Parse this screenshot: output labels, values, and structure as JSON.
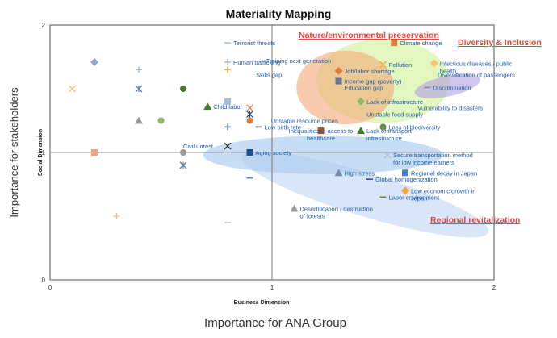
{
  "chart_data": {
    "type": "scatter",
    "title": "Materiality Mapping",
    "xlabel": "Importance for ANA Group",
    "ylabel": "Importance for stakeholders",
    "x_axis_inner_label": "Business Dimension",
    "y_axis_inner_label": "Social Dimension",
    "xlim": [
      0,
      2
    ],
    "ylim": [
      0,
      2
    ],
    "x_ticks": [
      "0",
      "1",
      "2"
    ],
    "y_ticks": [
      "0",
      "1",
      "2"
    ],
    "midlines": {
      "x": 1,
      "y": 1
    },
    "grid": false,
    "regions": [
      {
        "name": "Nature/environmental preservation",
        "color": "#e8473a",
        "cx": 1.5,
        "cy": 1.56,
        "rx": 0.3,
        "ry": 0.33,
        "fill": "#c8f08a",
        "opacity": 0.55,
        "rotate": 0
      },
      {
        "name": "",
        "color": "#f4a878",
        "cx": 1.33,
        "cy": 1.51,
        "rx": 0.22,
        "ry": 0.29,
        "fill": "#f4a878",
        "opacity": 0.6,
        "rotate": 0
      },
      {
        "name": "Diversity & Inclusion",
        "color": "#e8473a",
        "cx": 1.79,
        "cy": 1.52,
        "rx": 0.15,
        "ry": 0.08,
        "fill": "#b7a6e2",
        "opacity": 0.65,
        "rotate": -12
      },
      {
        "name": "Regional revitalization",
        "color": "#e8473a",
        "cx": 1.42,
        "cy": 0.67,
        "rx": 0.58,
        "ry": 0.17,
        "fill": "#aac8ee",
        "opacity": 0.45,
        "rotate": 17
      },
      {
        "name": "",
        "color": "",
        "cx": 1.23,
        "cy": 0.98,
        "rx": 0.54,
        "ry": 0.15,
        "fill": "#a9cbef",
        "opacity": 0.65,
        "rotate": 0
      }
    ],
    "points": [
      {
        "label": "Terrorist threats",
        "x": 0.8,
        "y": 1.86,
        "marker": "dash",
        "color": "#a7bde0",
        "text_color": "#1e5fa8"
      },
      {
        "label": "Human trafficking",
        "x": 0.8,
        "y": 1.71,
        "marker": "plus",
        "color": "#a7bde0",
        "text_color": "#1e5fa8"
      },
      {
        "label": "Training next generation",
        "x": 1.12,
        "y": 1.72,
        "marker": "none",
        "color": "",
        "text_color": "#1e5fa8"
      },
      {
        "label": "Skills gap",
        "x": 1.07,
        "y": 1.61,
        "marker": "none",
        "color": "",
        "text_color": "#1e5fa8"
      },
      {
        "label": "Job/labor shortage",
        "x": 1.3,
        "y": 1.64,
        "marker": "diamond",
        "color": "#e07b39",
        "text_color": "#1e5fa8"
      },
      {
        "label": "Income gap (poverty)",
        "x": 1.3,
        "y": 1.56,
        "marker": "square",
        "color": "#66788f",
        "text_color": "#1e5fa8"
      },
      {
        "label": "Education gap",
        "x": 1.3,
        "y": 1.51,
        "marker": "none",
        "color": "",
        "text_color": "#1e5fa8"
      },
      {
        "label": "Climate change",
        "x": 1.55,
        "y": 1.86,
        "marker": "square",
        "color": "#e07b39",
        "text_color": "#1e5fa8"
      },
      {
        "label": "Pollution",
        "x": 1.5,
        "y": 1.69,
        "marker": "x",
        "color": "#f4a63b",
        "text_color": "#1e5fa8"
      },
      {
        "label": "Infectious diseases / public health",
        "x": 1.73,
        "y": 1.7,
        "marker": "diamond",
        "color": "#f6c27a",
        "text_color": "#1e5fa8"
      },
      {
        "label": "Diversification of passengers",
        "x": 1.72,
        "y": 1.61,
        "marker": "none",
        "color": "",
        "text_color": "#1e5fa8"
      },
      {
        "label": "Discrimination",
        "x": 1.7,
        "y": 1.51,
        "marker": "dash",
        "color": "#7a8ea8",
        "text_color": "#1e5fa8"
      },
      {
        "label": "Lack of infrastructure",
        "x": 1.4,
        "y": 1.4,
        "marker": "diamond",
        "color": "#8fb56a",
        "text_color": "#1e5fa8"
      },
      {
        "label": "Vulnerability to disasters",
        "x": 1.63,
        "y": 1.35,
        "marker": "none",
        "color": "",
        "text_color": "#1e5fa8"
      },
      {
        "label": "Unstable food supply",
        "x": 1.4,
        "y": 1.3,
        "marker": "none",
        "color": "",
        "text_color": "#1e5fa8"
      },
      {
        "label": "Loss of biodiversity",
        "x": 1.5,
        "y": 1.2,
        "marker": "circle",
        "color": "#5f8d3c",
        "text_color": "#1e5fa8"
      },
      {
        "label": "Child labor",
        "x": 0.71,
        "y": 1.36,
        "marker": "triangle",
        "color": "#3f7d2b",
        "text_color": "#1e5fa8"
      },
      {
        "label": "Unstable resource prices",
        "x": 0.97,
        "y": 1.25,
        "marker": "none",
        "color": "",
        "text_color": "#1e5fa8"
      },
      {
        "label": "Low birth rate",
        "x": 0.94,
        "y": 1.2,
        "marker": "dash",
        "color": "#4f5f78",
        "text_color": "#1e5fa8"
      },
      {
        "label": "Inequalities in access to healthcare",
        "x": 1.22,
        "y": 1.17,
        "marker": "square",
        "color": "#a0522d",
        "text_color": "#1e5fa8"
      },
      {
        "label": "Lack of transport infrastructure",
        "x": 1.4,
        "y": 1.17,
        "marker": "triangle",
        "color": "#3f7d2b",
        "text_color": "#1e5fa8"
      },
      {
        "label": "Civil unrest",
        "x": 0.76,
        "y": 1.05,
        "marker": "none",
        "color": "",
        "text_color": "#1e5fa8"
      },
      {
        "label": "Aging society",
        "x": 0.9,
        "y": 1.0,
        "marker": "square",
        "color": "#1f4e8c",
        "text_color": "#1e5fa8"
      },
      {
        "label": "Secure transportation method for low income earners",
        "x": 1.52,
        "y": 0.98,
        "marker": "x",
        "color": "#a7bde0",
        "text_color": "#1e5fa8"
      },
      {
        "label": "High stress",
        "x": 1.3,
        "y": 0.84,
        "marker": "triangle",
        "color": "#7a8ea8",
        "text_color": "#1e5fa8"
      },
      {
        "label": "Regional decay in Japan",
        "x": 1.6,
        "y": 0.84,
        "marker": "square",
        "color": "#4f7fbf",
        "text_color": "#1e5fa8"
      },
      {
        "label": "Global homogenization",
        "x": 1.44,
        "y": 0.79,
        "marker": "dash",
        "color": "#1f4e8c",
        "text_color": "#1e5fa8"
      },
      {
        "label": "Low economic growth in Japan",
        "x": 1.6,
        "y": 0.7,
        "marker": "diamond",
        "color": "#f4a63b",
        "text_color": "#1e5fa8"
      },
      {
        "label": "Labor environment",
        "x": 1.5,
        "y": 0.65,
        "marker": "dash",
        "color": "#5f8d3c",
        "text_color": "#1e5fa8"
      },
      {
        "label": "Desertification / destruction of forests",
        "x": 1.1,
        "y": 0.56,
        "marker": "triangle",
        "color": "#9a9a9a",
        "text_color": "#1e5fa8"
      },
      {
        "label": "",
        "x": 0.2,
        "y": 1.71,
        "marker": "diamond",
        "color": "#8fa3d1",
        "text_color": ""
      },
      {
        "label": "",
        "x": 0.4,
        "y": 1.65,
        "marker": "plus",
        "color": "#a7bde0",
        "text_color": ""
      },
      {
        "label": "",
        "x": 0.1,
        "y": 1.5,
        "marker": "x",
        "color": "#f6c27a",
        "text_color": ""
      },
      {
        "label": "",
        "x": 0.4,
        "y": 1.5,
        "marker": "star",
        "color": "#6a7fb0",
        "text_color": ""
      },
      {
        "label": "",
        "x": 0.6,
        "y": 1.5,
        "marker": "circle",
        "color": "#4b7a2f",
        "text_color": ""
      },
      {
        "label": "",
        "x": 0.8,
        "y": 1.65,
        "marker": "plus",
        "color": "#f4a63b",
        "text_color": ""
      },
      {
        "label": "",
        "x": 0.8,
        "y": 1.4,
        "marker": "square",
        "color": "#a7bde0",
        "text_color": ""
      },
      {
        "label": "",
        "x": 0.9,
        "y": 1.35,
        "marker": "x",
        "color": "#e07b39",
        "text_color": ""
      },
      {
        "label": "",
        "x": 0.9,
        "y": 1.3,
        "marker": "star",
        "color": "#1f4e8c",
        "text_color": ""
      },
      {
        "label": "",
        "x": 0.9,
        "y": 1.25,
        "marker": "circle",
        "color": "#e07b39",
        "text_color": ""
      },
      {
        "label": "",
        "x": 0.4,
        "y": 1.25,
        "marker": "triangle",
        "color": "#9a9a9a",
        "text_color": ""
      },
      {
        "label": "",
        "x": 0.5,
        "y": 1.25,
        "marker": "circle",
        "color": "#8fb56a",
        "text_color": ""
      },
      {
        "label": "",
        "x": 0.8,
        "y": 1.2,
        "marker": "plus",
        "color": "#6a7fb0",
        "text_color": ""
      },
      {
        "label": "",
        "x": 0.8,
        "y": 1.05,
        "marker": "x",
        "color": "#333333",
        "text_color": ""
      },
      {
        "label": "",
        "x": 0.2,
        "y": 1.0,
        "marker": "square",
        "color": "#f0a07a",
        "text_color": ""
      },
      {
        "label": "",
        "x": 0.6,
        "y": 1.0,
        "marker": "circle",
        "color": "#9a9a9a",
        "text_color": ""
      },
      {
        "label": "",
        "x": 0.8,
        "y": 1.0,
        "marker": "dash",
        "color": "#cccccc",
        "text_color": ""
      },
      {
        "label": "",
        "x": 0.6,
        "y": 0.9,
        "marker": "star",
        "color": "#4f7fbf",
        "text_color": ""
      },
      {
        "label": "",
        "x": 0.9,
        "y": 0.8,
        "marker": "dash",
        "color": "#4f7fbf",
        "text_color": ""
      },
      {
        "label": "",
        "x": 0.3,
        "y": 0.5,
        "marker": "plus",
        "color": "#f6c27a",
        "text_color": ""
      },
      {
        "label": "",
        "x": 0.8,
        "y": 0.45,
        "marker": "dash",
        "color": "#cccccc",
        "text_color": ""
      }
    ]
  }
}
